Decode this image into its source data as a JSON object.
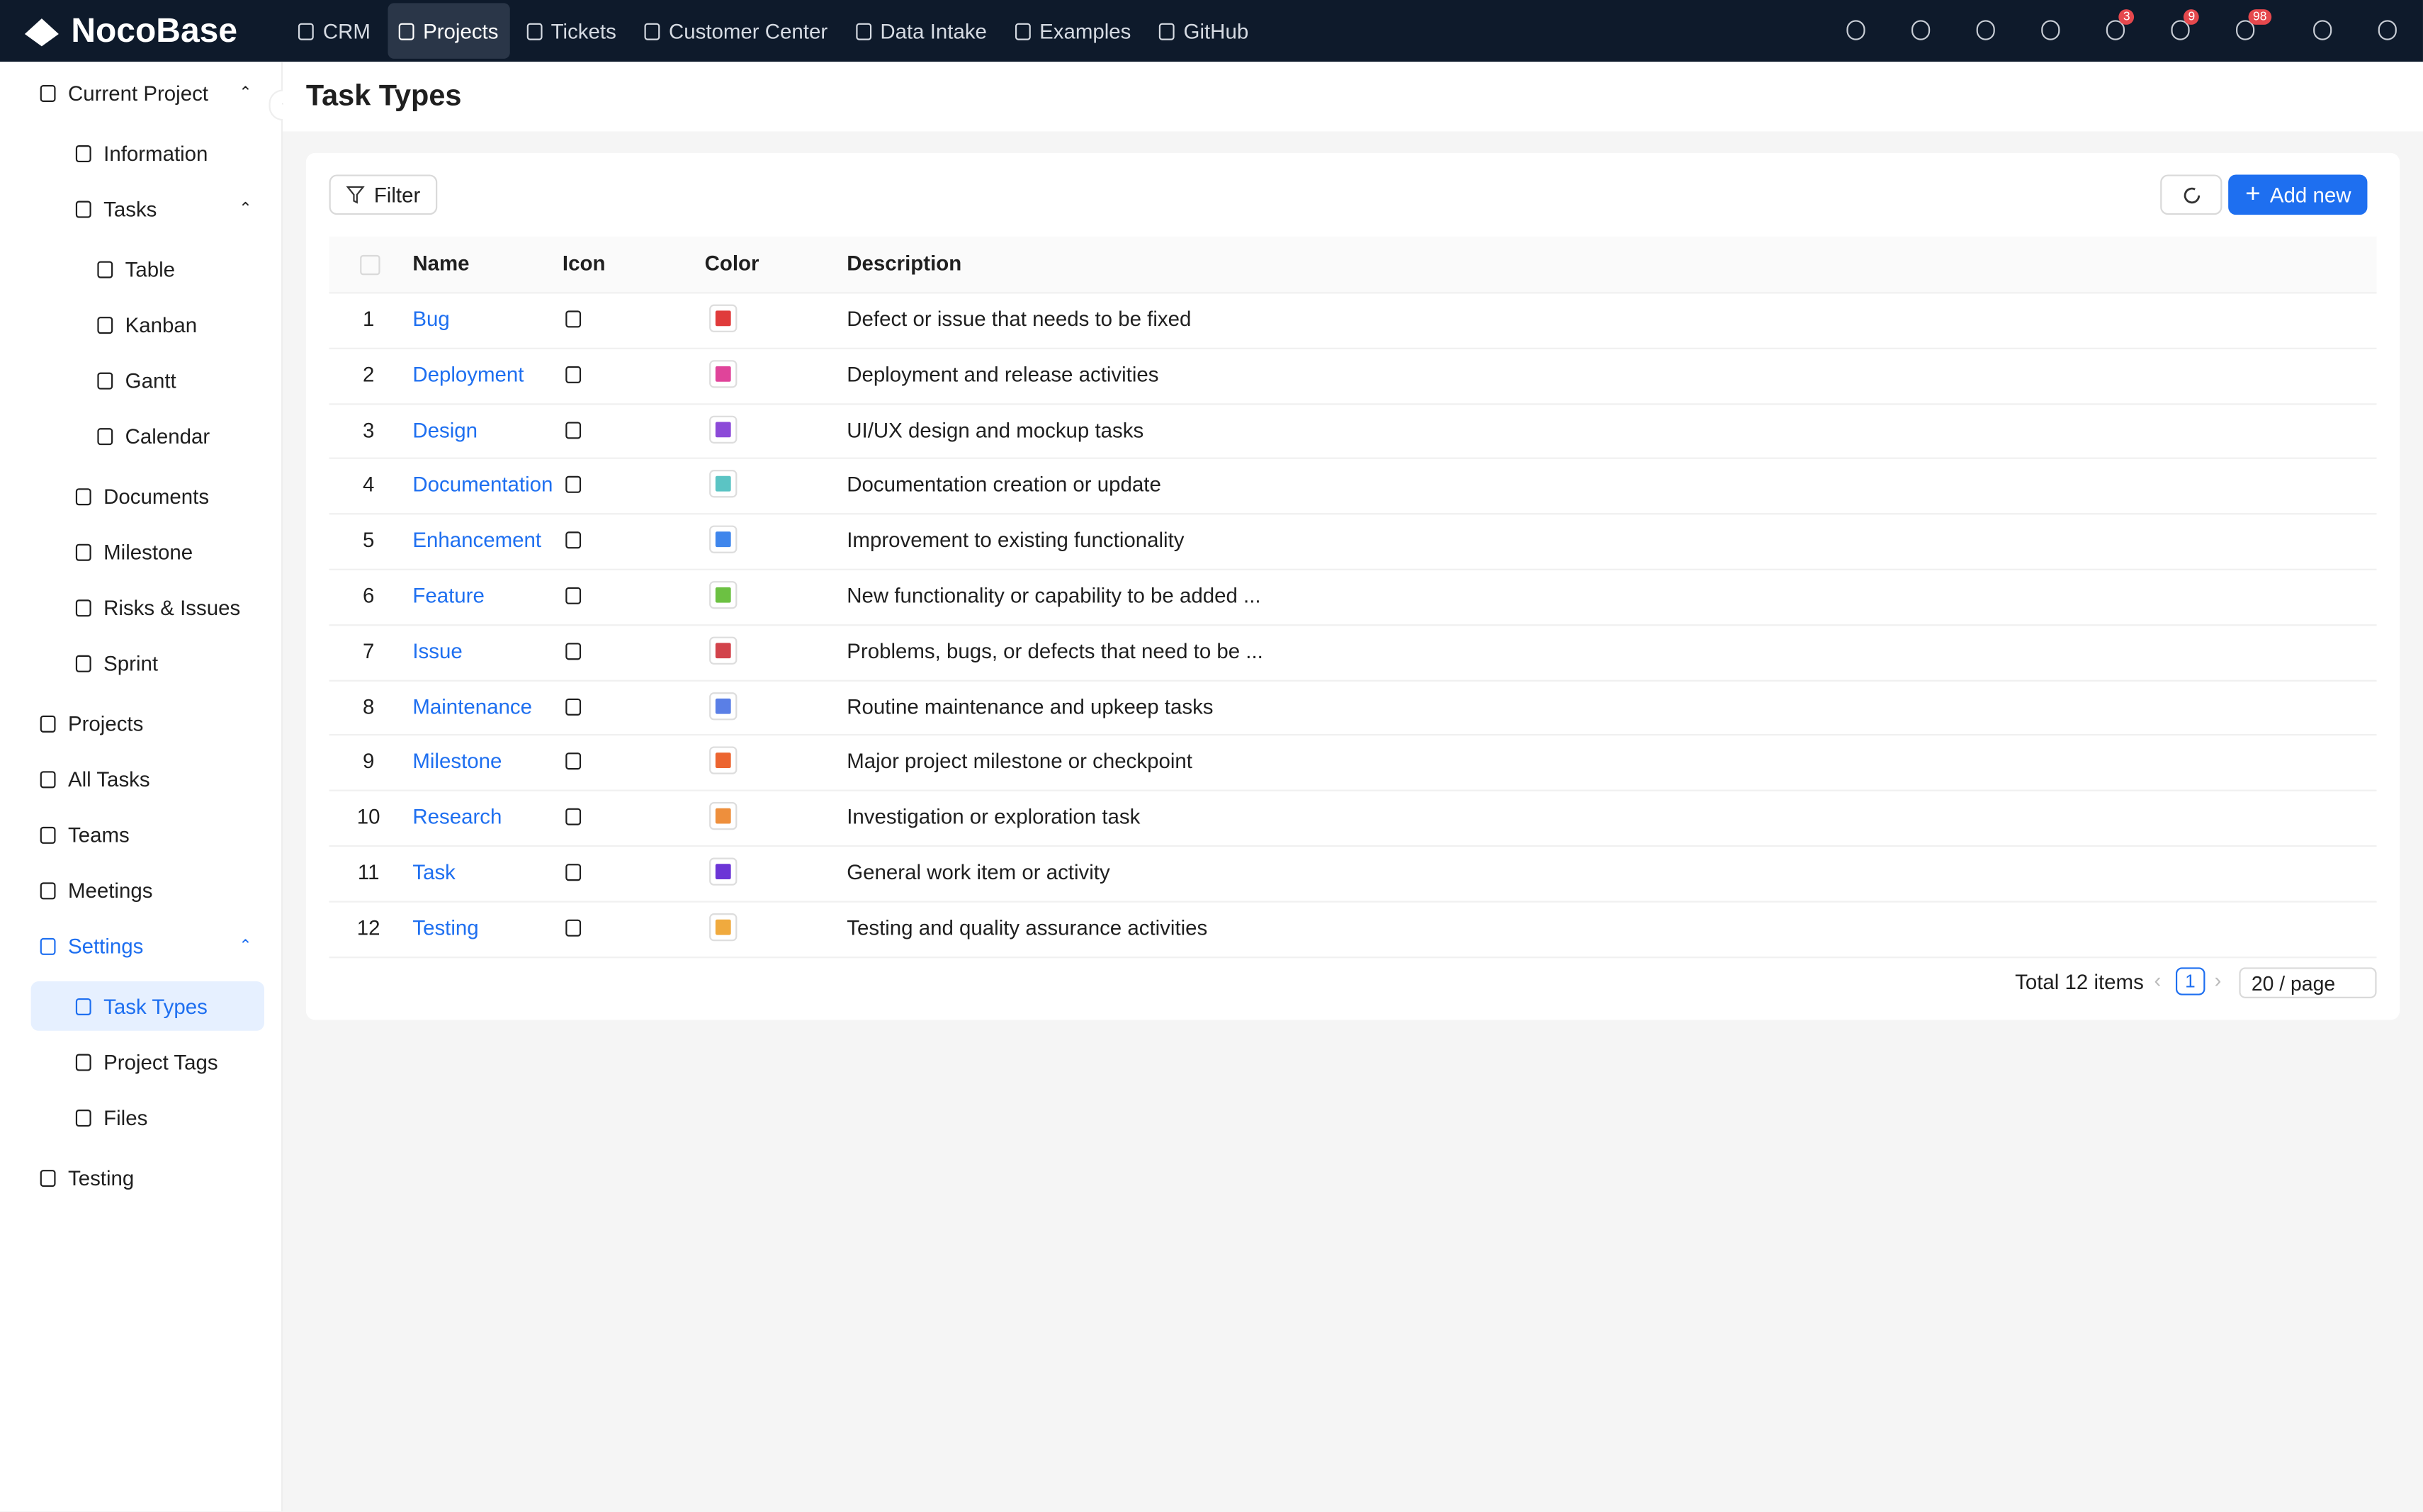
{
  "header": {
    "logo": "NocoBase",
    "nav": [
      "CRM",
      "Projects",
      "Tickets",
      "Customer Center",
      "Data Intake",
      "Examples",
      "GitHub"
    ],
    "active_nav": 1,
    "badges": [
      3,
      9,
      98
    ]
  },
  "sidebar": {
    "items": [
      {
        "label": "Current Project",
        "children": [
          {
            "label": "Information"
          },
          {
            "label": "Tasks",
            "children": [
              {
                "label": "Table"
              },
              {
                "label": "Kanban"
              },
              {
                "label": "Gantt"
              },
              {
                "label": "Calendar"
              }
            ]
          },
          {
            "label": "Documents"
          },
          {
            "label": "Milestone"
          },
          {
            "label": "Risks & Issues"
          },
          {
            "label": "Sprint"
          }
        ]
      },
      {
        "label": "Projects"
      },
      {
        "label": "All Tasks"
      },
      {
        "label": "Teams"
      },
      {
        "label": "Meetings"
      },
      {
        "label": "Settings",
        "children": [
          {
            "label": "Task Types",
            "active": true
          },
          {
            "label": "Project Tags"
          },
          {
            "label": "Files"
          }
        ]
      },
      {
        "label": "Testing"
      }
    ]
  },
  "page": {
    "title": "Task Types",
    "filter": "Filter",
    "add_new": "Add new",
    "table": {
      "columns": [
        "Name",
        "Icon",
        "Color",
        "Description"
      ],
      "rows": [
        {
          "index": 1,
          "name": "Bug",
          "color": "#e03b3b",
          "description": "Defect or issue that needs to be fixed"
        },
        {
          "index": 2,
          "name": "Deployment",
          "color": "#e0449a",
          "description": "Deployment and release activities"
        },
        {
          "index": 3,
          "name": "Design",
          "color": "#8c4ad8",
          "description": "UI/UX design and mockup tasks"
        },
        {
          "index": 4,
          "name": "Documentation",
          "color": "#5bc4c4",
          "description": "Documentation creation or update"
        },
        {
          "index": 5,
          "name": "Enhancement",
          "color": "#3f86ec",
          "description": "Improvement to existing functionality"
        },
        {
          "index": 6,
          "name": "Feature",
          "color": "#6cc142",
          "description": "New functionality or capability to be added ..."
        },
        {
          "index": 7,
          "name": "Issue",
          "color": "#d2434b",
          "description": "Problems, bugs, or defects that need to be ..."
        },
        {
          "index": 8,
          "name": "Maintenance",
          "color": "#5a7fe6",
          "description": "Routine maintenance and upkeep tasks"
        },
        {
          "index": 9,
          "name": "Milestone",
          "color": "#ec6530",
          "description": "Major project milestone or checkpoint"
        },
        {
          "index": 10,
          "name": "Research",
          "color": "#ee8f3c",
          "description": "Investigation or exploration task"
        },
        {
          "index": 11,
          "name": "Task",
          "color": "#6c35d6",
          "description": "General work item or activity"
        },
        {
          "index": 12,
          "name": "Testing",
          "color": "#f0aa3e",
          "description": "Testing and quality assurance activities"
        }
      ]
    },
    "pagination": {
      "total": "Total 12 items",
      "page": 1,
      "page_size": "20 / page"
    }
  }
}
